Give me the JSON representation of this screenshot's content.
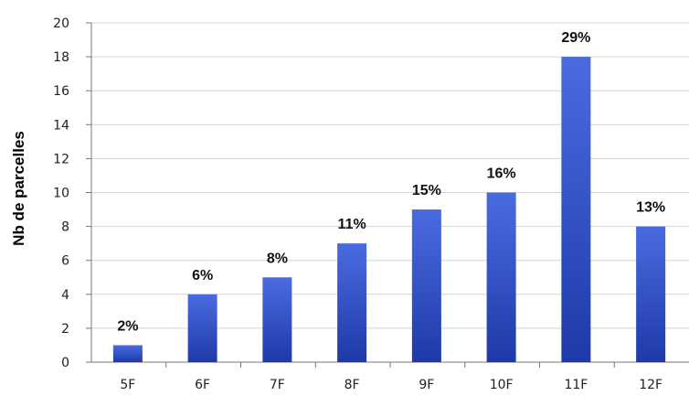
{
  "chart_data": {
    "type": "bar",
    "title": "",
    "xlabel": "",
    "ylabel": "Nb de parcelles",
    "categories": [
      "5F",
      "6F",
      "7F",
      "8F",
      "9F",
      "10F",
      "11F",
      "12F"
    ],
    "values": [
      1,
      4,
      5,
      7,
      9,
      10,
      18,
      8
    ],
    "data_labels": [
      "2%",
      "6%",
      "8%",
      "11%",
      "15%",
      "16%",
      "29%",
      "13%"
    ],
    "ylim": [
      0,
      20
    ],
    "yticks": [
      "0",
      "2",
      "4",
      "6",
      "8",
      "10",
      "12",
      "14",
      "16",
      "18",
      "20"
    ],
    "grid": true,
    "legend": "none",
    "bar_color": "#3550cc"
  }
}
